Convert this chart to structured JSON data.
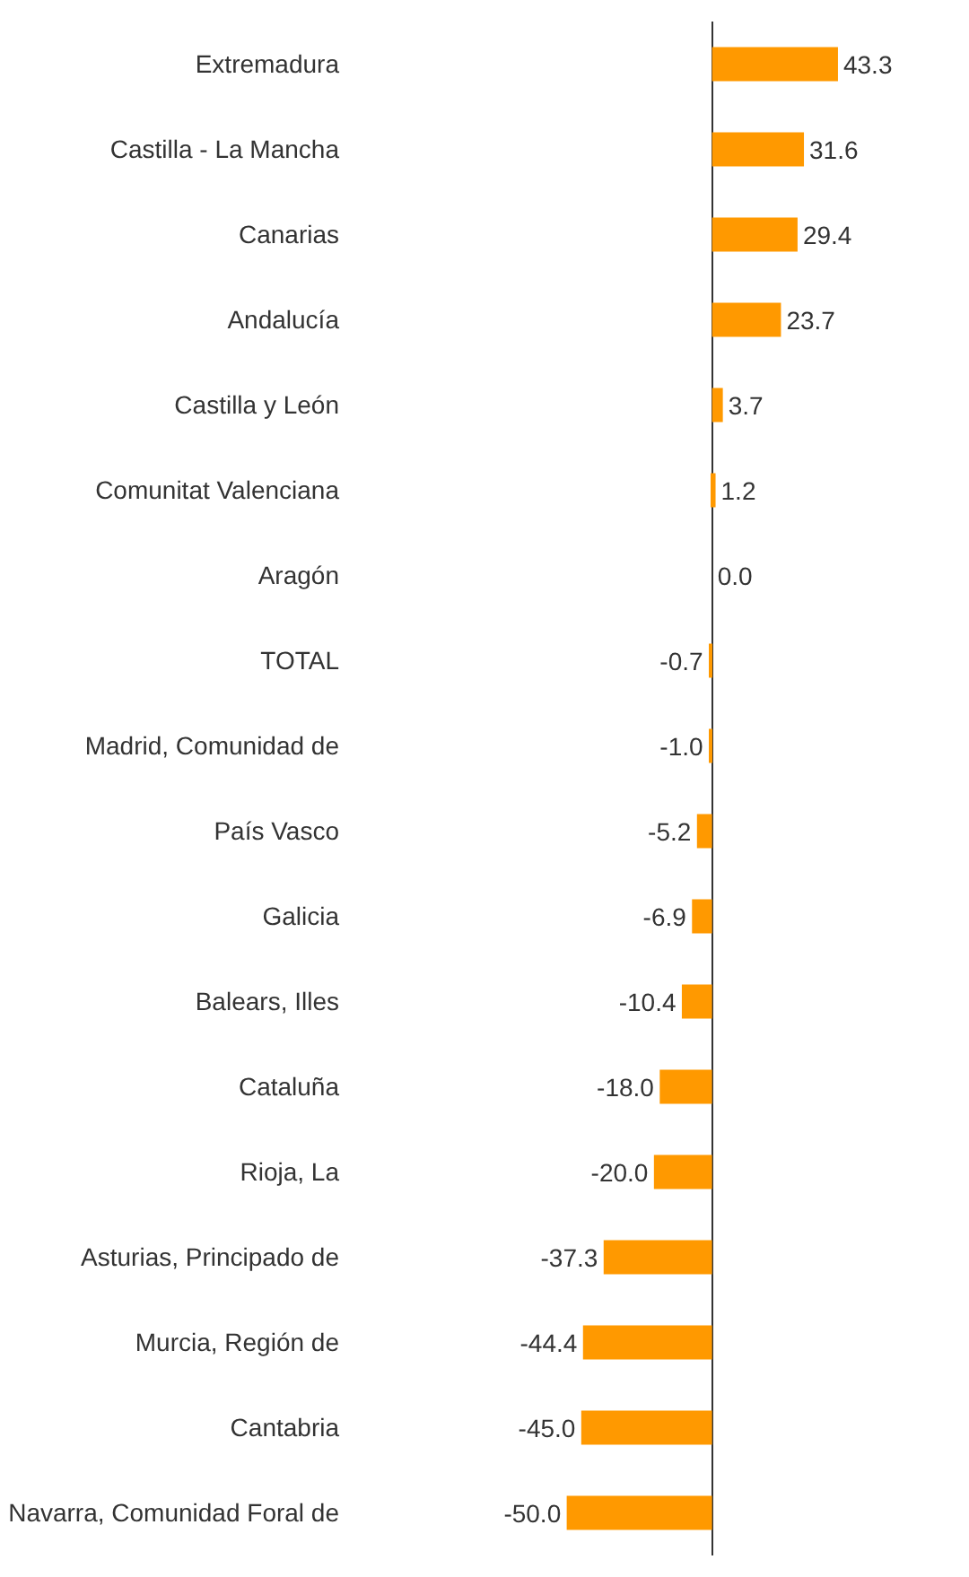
{
  "chart_data": {
    "type": "bar",
    "orientation": "horizontal",
    "categories": [
      "Extremadura",
      "Castilla - La Mancha",
      "Canarias",
      "Andalucía",
      "Castilla y León",
      "Comunitat Valenciana",
      "Aragón",
      "TOTAL",
      "Madrid, Comunidad de",
      "País Vasco",
      "Galicia",
      "Balears, Illes",
      "Cataluña",
      "Rioja, La",
      "Asturias, Principado de",
      "Murcia, Región de",
      "Cantabria",
      "Navarra, Comunidad Foral de"
    ],
    "values": [
      43.3,
      31.6,
      29.4,
      23.7,
      3.7,
      1.2,
      0.0,
      -0.7,
      -1.0,
      -5.2,
      -6.9,
      -10.4,
      -18.0,
      -20.0,
      -37.3,
      -44.4,
      -45.0,
      -50.0
    ],
    "value_labels": [
      "43.3",
      "31.6",
      "29.4",
      "23.7",
      "3.7",
      "1.2",
      "0.0",
      "-0.7",
      "-1.0",
      "-5.2",
      "-6.9",
      "-10.4",
      "-18.0",
      "-20.0",
      "-37.3",
      "-44.4",
      "-45.0",
      "-50.0"
    ],
    "color": "#ff9900",
    "tick_labels": "y"
  }
}
